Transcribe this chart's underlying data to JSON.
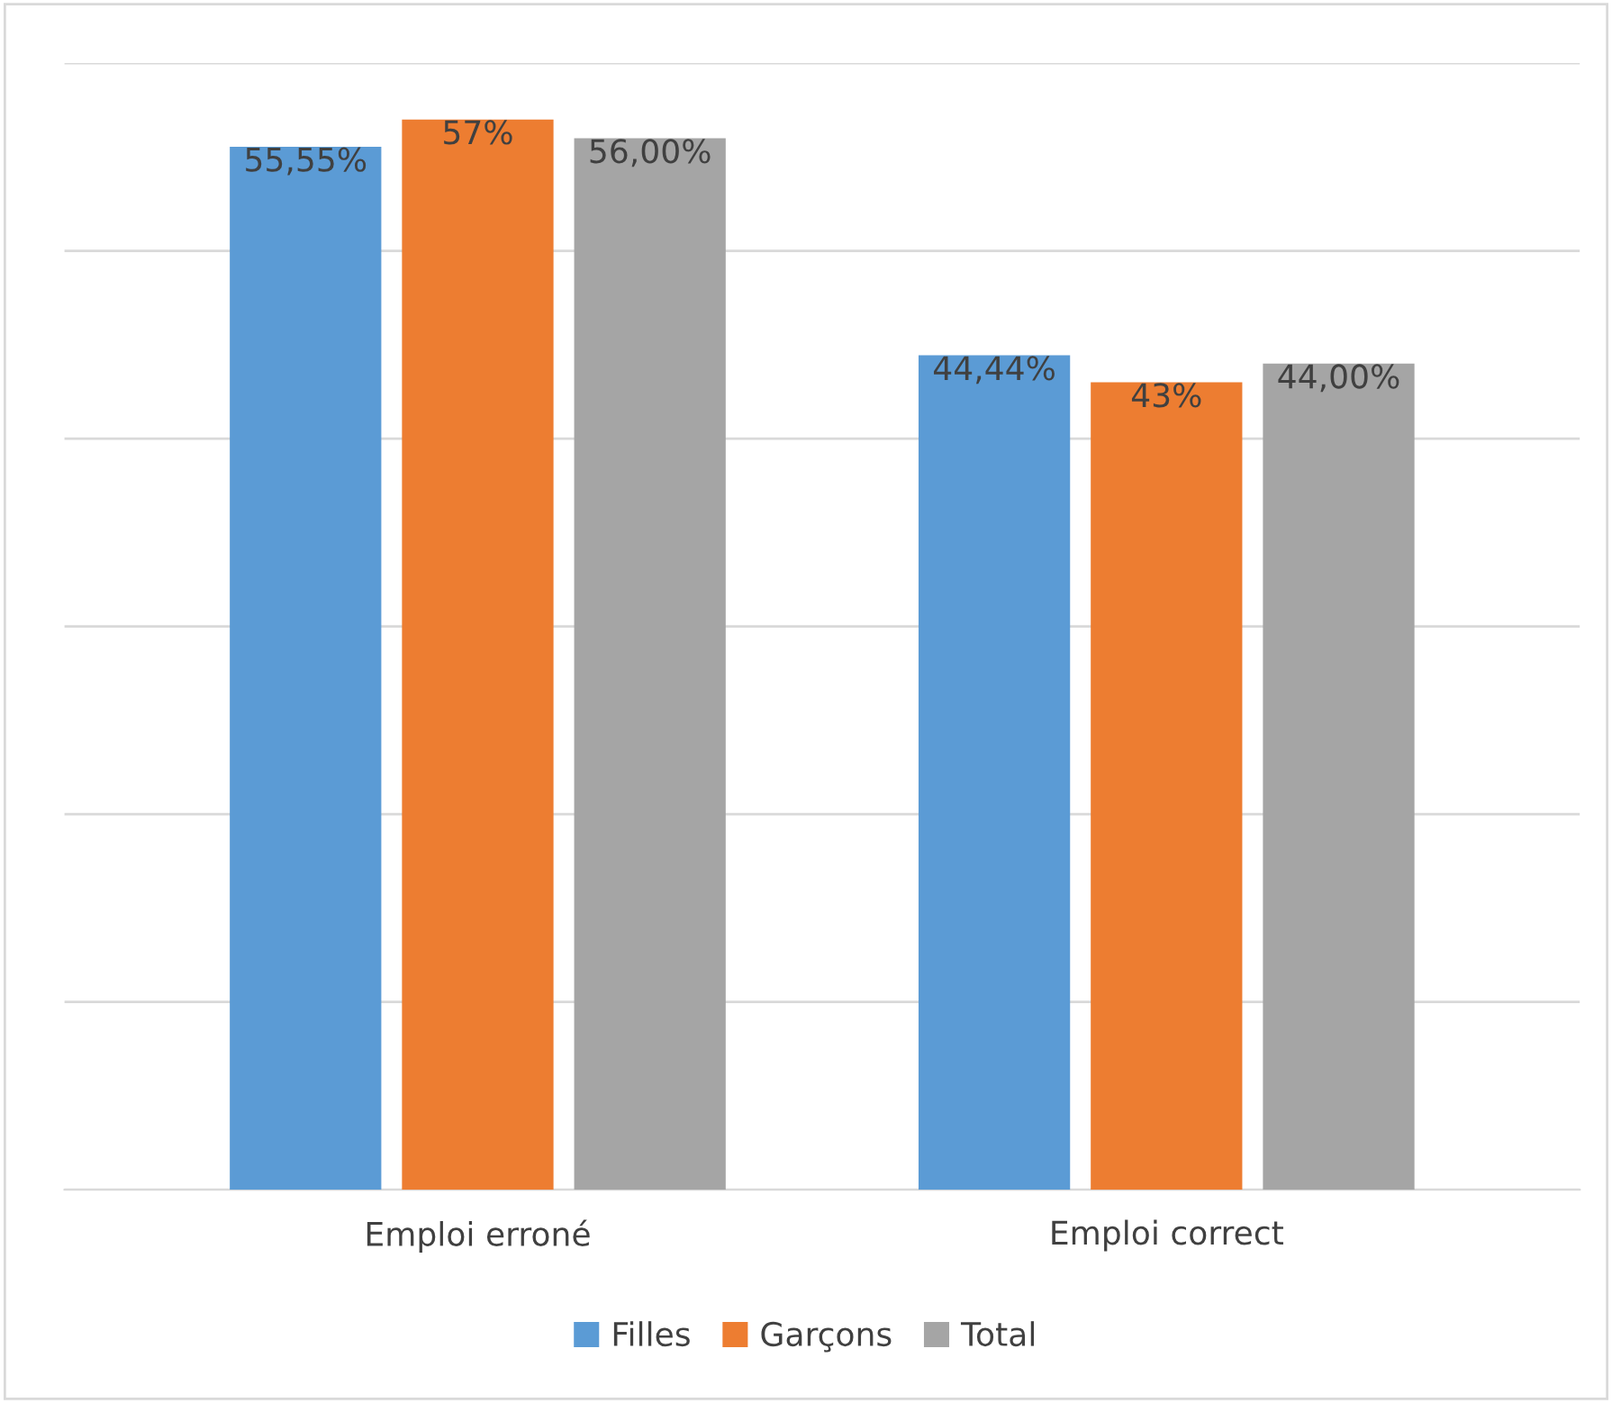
{
  "chart_data": {
    "type": "bar",
    "categories": [
      "Emploi erroné",
      "Emploi correct"
    ],
    "series": [
      {
        "name": "Filles",
        "color": "#5b9bd5",
        "values": [
          55.55,
          44.44
        ],
        "value_labels": [
          "55,55%",
          "44,44%"
        ]
      },
      {
        "name": "Garçons",
        "color": "#ed7d31",
        "values": [
          57,
          43
        ],
        "value_labels": [
          "57%",
          "43%"
        ]
      },
      {
        "name": "Total",
        "color": "#a5a5a5",
        "values": [
          56.0,
          44.0
        ],
        "value_labels": [
          "56,00%",
          "44,00%"
        ]
      }
    ],
    "ylim": [
      0,
      60
    ],
    "yticks": [
      {
        "value": 0,
        "label": null
      },
      {
        "value": 10,
        "label": null
      },
      {
        "value": 20,
        "label": null
      },
      {
        "value": 30,
        "label": null
      },
      {
        "value": 40,
        "label": null
      },
      {
        "value": 50,
        "label": null
      },
      {
        "value": 60,
        "label": null
      }
    ],
    "grid": "y",
    "legend": "bottom",
    "tick_labels": "x"
  }
}
